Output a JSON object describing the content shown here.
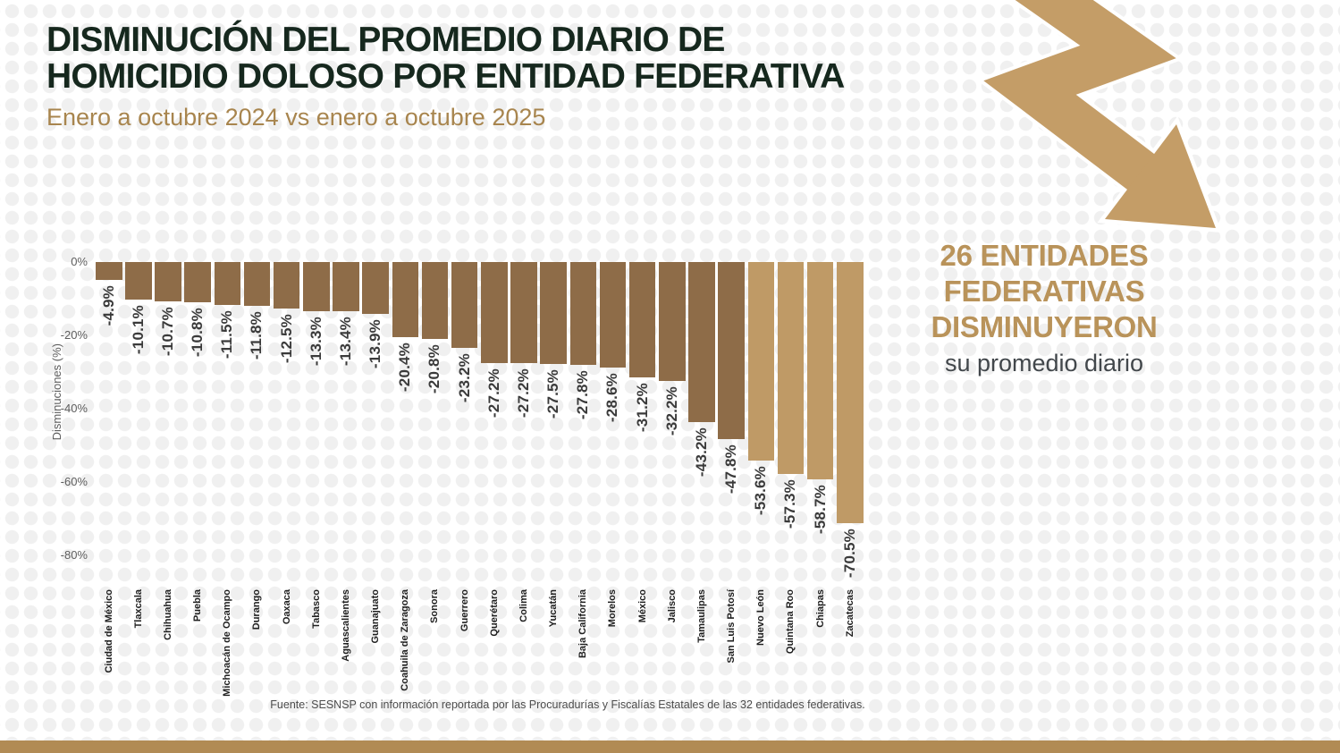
{
  "header": {
    "title_line1": "DISMINUCIÓN DEL PROMEDIO DIARIO DE",
    "title_line2": "HOMICIDIO DOLOSO POR ENTIDAD FEDERATIVA",
    "subtitle": "Enero a octubre 2024 vs enero a octubre 2025"
  },
  "callout": {
    "line1": "26 ENTIDADES",
    "line2": "FEDERATIVAS",
    "line3": "DISMINUYERON",
    "subline": "su promedio diario"
  },
  "footer": {
    "source": "Fuente: SESNSP con información reportada por las Procuradurías y Fiscalías Estatales de las 32 entidades federativas."
  },
  "icons": {
    "arrow": "downward-zigzag-trend-arrow"
  },
  "colors": {
    "title_text": "#16281e",
    "subtitle_text": "#a8854e",
    "gold_text": "#b9935a",
    "dark_text": "#42474b",
    "bar_dark": "#8e6c48",
    "bar_light": "#bf9a66",
    "arrow": "#c49d67",
    "bottom_bar": "#b18b54",
    "axis_text": "#5e5e5e",
    "value_label": "#3a3a3a",
    "state_label": "#1f1f1f",
    "source_text": "#4c4c4c",
    "pattern": "#f0f0f0"
  },
  "chart_data": {
    "type": "bar",
    "title": "Disminución del promedio diario de homicidio doloso por entidad federativa, enero a octubre 2024 vs enero a octubre 2025",
    "xlabel": "",
    "ylabel": "Disminuciones (%)",
    "ylim": [
      -80,
      0
    ],
    "grid": false,
    "legend": false,
    "yticks": [
      "0%",
      "-20%",
      "-40%",
      "-60%",
      "-80%"
    ],
    "categories": [
      "Ciudad de México",
      "Tlaxcala",
      "Chihuahua",
      "Puebla",
      "Michoacán de Ocampo",
      "Durango",
      "Oaxaca",
      "Tabasco",
      "Aguascalientes",
      "Guanajuato",
      "Coahuila de Zaragoza",
      "Sonora",
      "Guerrero",
      "Querétaro",
      "Colima",
      "Yucatán",
      "Baja California",
      "Morelos",
      "México",
      "Jalisco",
      "Tamaulipas",
      "San Luis Potosí",
      "Nuevo León",
      "Quintana Roo",
      "Chiapas",
      "Zacatecas"
    ],
    "values": [
      -4.9,
      -10.1,
      -10.7,
      -10.8,
      -11.5,
      -11.8,
      -12.5,
      -13.3,
      -13.4,
      -13.9,
      -20.4,
      -20.8,
      -23.2,
      -27.2,
      -27.2,
      -27.5,
      -27.8,
      -28.6,
      -31.2,
      -32.2,
      -43.2,
      -47.8,
      -53.6,
      -57.3,
      -58.7,
      -70.5
    ],
    "labels": [
      "-4.9%",
      "-10.1%",
      "-10.7%",
      "-10.8%",
      "-11.5%",
      "-11.8%",
      "-12.5%",
      "-13.3%",
      "-13.4%",
      "-13.9%",
      "-20.4%",
      "-20.8%",
      "-23.2%",
      "-27.2%",
      "-27.2%",
      "-27.5%",
      "-27.8%",
      "-28.6%",
      "-31.2%",
      "-32.2%",
      "-43.2%",
      "-47.8%",
      "-53.6%",
      "-57.3%",
      "-58.7%",
      "-70.5%"
    ],
    "bar_colors": [
      "#8e6c48",
      "#8e6c48",
      "#8e6c48",
      "#8e6c48",
      "#8e6c48",
      "#8e6c48",
      "#8e6c48",
      "#8e6c48",
      "#8e6c48",
      "#8e6c48",
      "#8e6c48",
      "#8e6c48",
      "#8e6c48",
      "#8e6c48",
      "#8e6c48",
      "#8e6c48",
      "#8e6c48",
      "#8e6c48",
      "#8e6c48",
      "#8e6c48",
      "#8e6c48",
      "#8e6c48",
      "#bf9a66",
      "#bf9a66",
      "#bf9a66",
      "#bf9a66"
    ]
  }
}
